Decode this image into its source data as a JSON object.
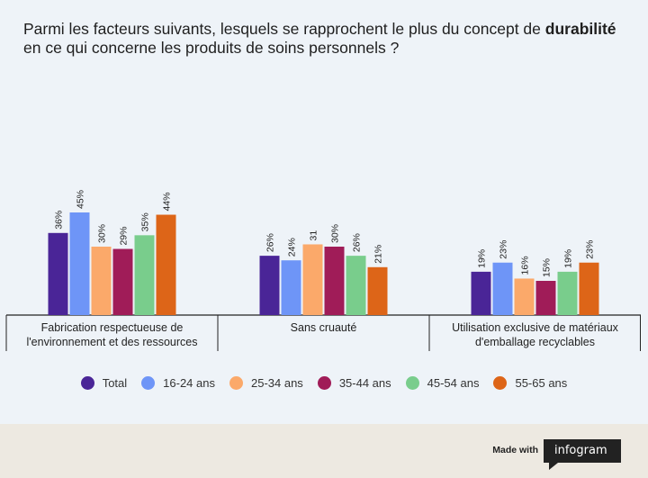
{
  "title": {
    "part1": "Parmi les facteurs suivants, lesquels se rapprochent le plus du concept de",
    "bold": "durabilité",
    "part2": " en ce qui concerne les produits de soins personnels ?"
  },
  "chart_data": {
    "type": "bar",
    "categories": [
      "Fabrication respectueuse de l'environnement et des ressources",
      "Sans cruauté",
      "Utilisation exclusive de matériaux d'emballage recyclables"
    ],
    "category_lines": [
      [
        "Fabrication respectueuse de",
        "l'environnement et des ressources"
      ],
      [
        "Sans cruauté"
      ],
      [
        "Utilisation exclusive de matériaux",
        "d'emballage recyclables"
      ]
    ],
    "series": [
      {
        "name": "Total",
        "color": "#4a2597",
        "values": [
          36,
          26,
          19
        ],
        "labels": [
          "36%",
          "26%",
          "19%"
        ]
      },
      {
        "name": "16-24 ans",
        "color": "#6e95f7",
        "values": [
          45,
          24,
          23
        ],
        "labels": [
          "45%",
          "24%",
          "23%"
        ]
      },
      {
        "name": "25-34 ans",
        "color": "#fba96a",
        "values": [
          30,
          31,
          16
        ],
        "labels": [
          "30%",
          "31",
          "16%"
        ]
      },
      {
        "name": "35-44 ans",
        "color": "#a01c58",
        "values": [
          29,
          30,
          15
        ],
        "labels": [
          "29%",
          "30%",
          "15%"
        ]
      },
      {
        "name": "45-54 ans",
        "color": "#79cd8c",
        "values": [
          35,
          26,
          19
        ],
        "labels": [
          "35%",
          "26%",
          "19%"
        ]
      },
      {
        "name": "55-65 ans",
        "color": "#dd6518",
        "values": [
          44,
          21,
          23
        ],
        "labels": [
          "44%",
          "21%",
          "23%"
        ]
      }
    ],
    "ylim": [
      0,
      45
    ],
    "grid": false,
    "legend_position": "bottom"
  },
  "footer": {
    "made_with": "Made with",
    "brand": "infogram"
  }
}
